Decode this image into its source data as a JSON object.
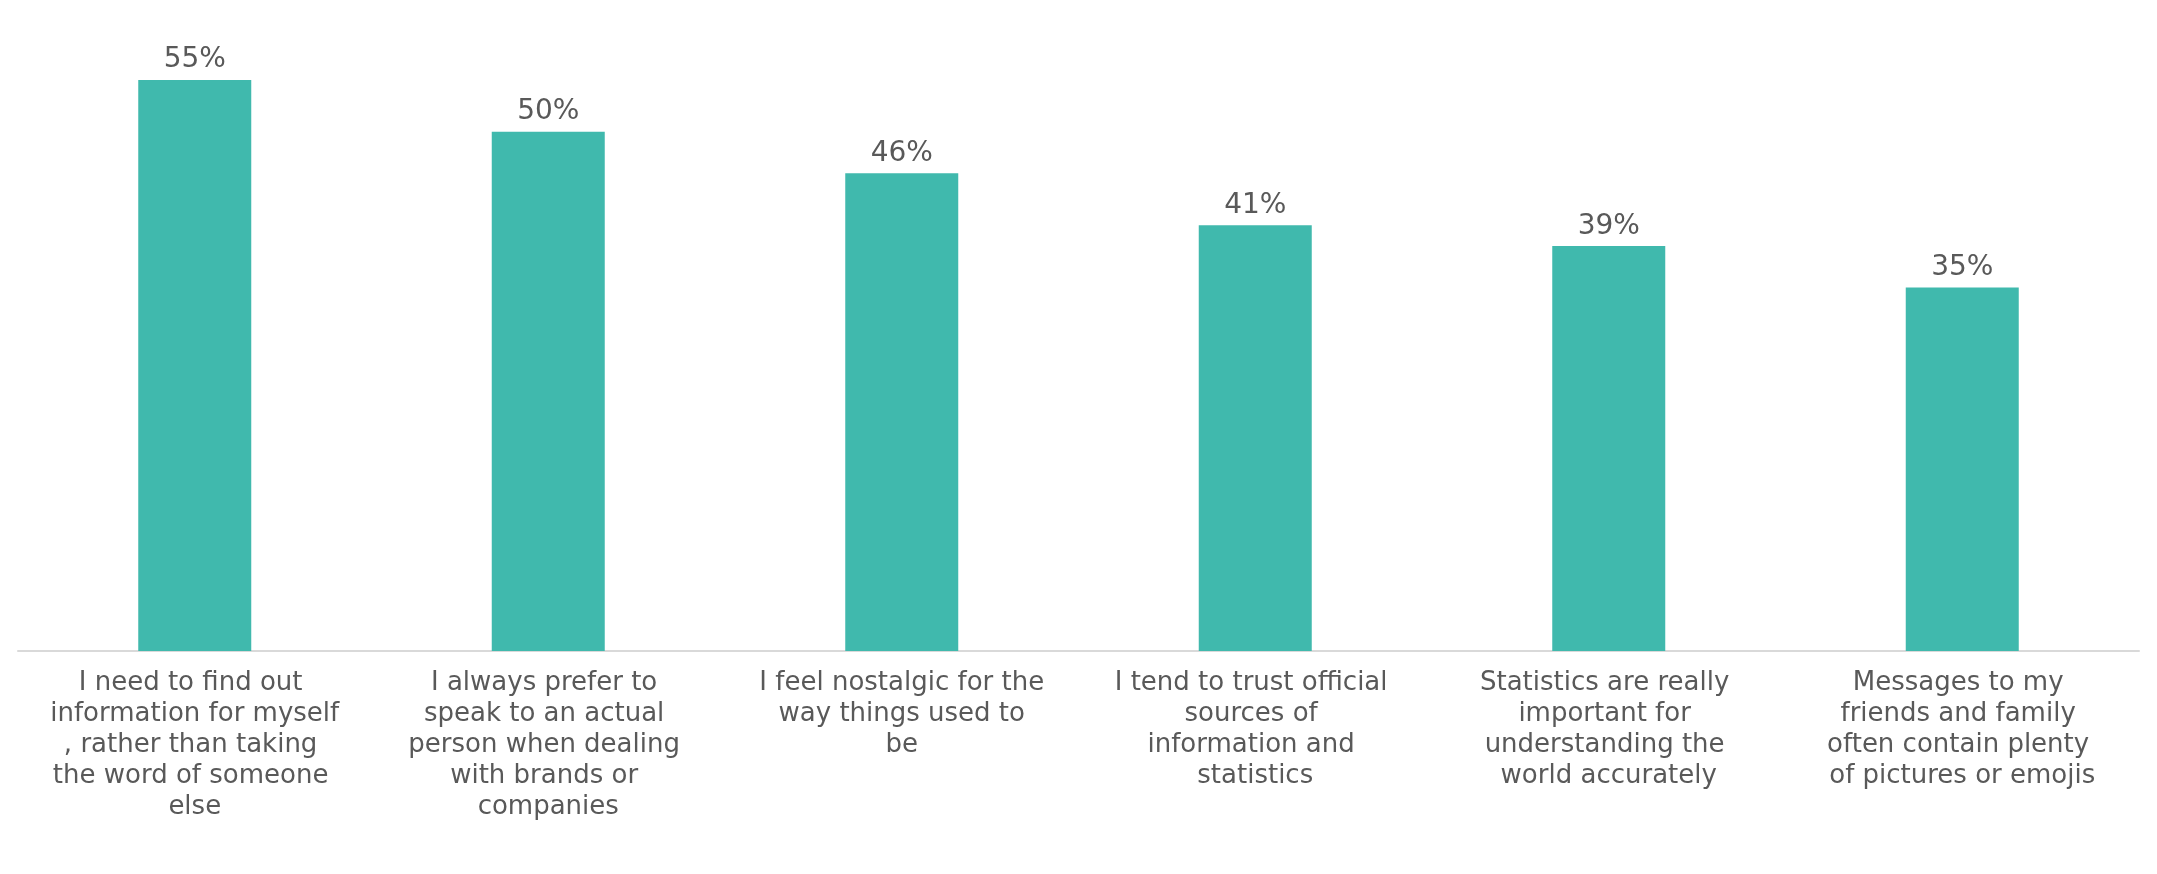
{
  "chart_data": {
    "type": "bar",
    "categories": [
      "I need to find out information for myself, rather than taking the word of someone else",
      "I always prefer to speak to an actual person when dealing with brands or companies",
      "I feel nostalgic for the way things used to be",
      "I tend to trust official sources of information and statistics",
      "Statistics are really important for understanding the world accurately",
      "Messages to my friends and family often contain plenty of pictures or emojis"
    ],
    "values": [
      55,
      50,
      46,
      41,
      39,
      35
    ],
    "value_labels": [
      "55%",
      "50%",
      "46%",
      "41%",
      "39%",
      "35%"
    ],
    "color": "#40b9ad"
  }
}
